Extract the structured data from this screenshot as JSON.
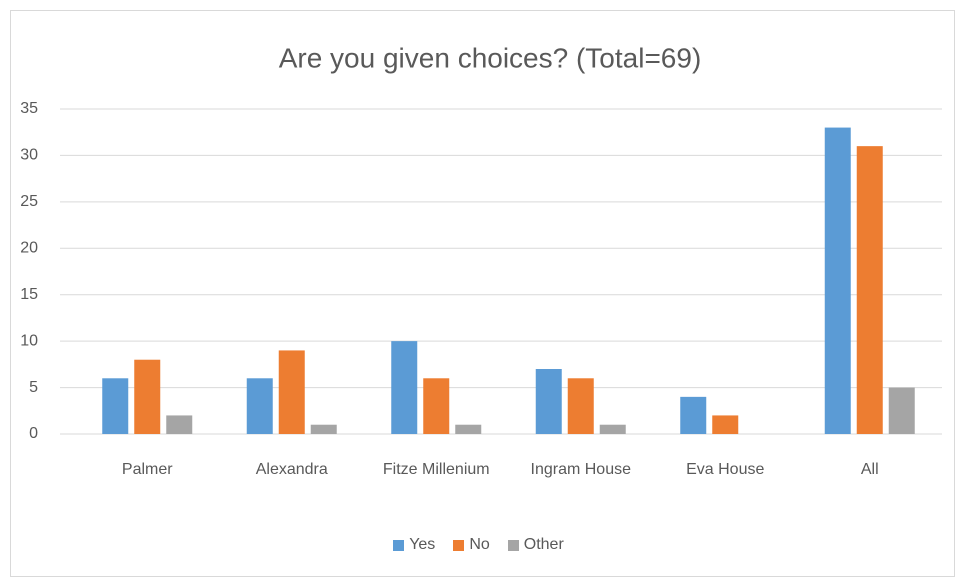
{
  "chart_data": {
    "type": "bar",
    "title": "Are you given choices? (Total=69)",
    "categories": [
      "Palmer",
      "Alexandra",
      "Fitze Millenium",
      "Ingram House",
      "Eva House",
      "All"
    ],
    "series": [
      {
        "name": "Yes",
        "color": "#5b9bd5",
        "values": [
          6,
          6,
          10,
          7,
          4,
          33
        ]
      },
      {
        "name": "No",
        "color": "#ed7d31",
        "values": [
          8,
          9,
          6,
          6,
          2,
          31
        ]
      },
      {
        "name": "Other",
        "color": "#a5a5a5",
        "values": [
          2,
          1,
          1,
          1,
          0,
          5
        ]
      }
    ],
    "ylim": [
      0,
      35
    ],
    "yticks": [
      0,
      5,
      10,
      15,
      20,
      25,
      30,
      35
    ],
    "grid": true,
    "legend": "bottom"
  }
}
